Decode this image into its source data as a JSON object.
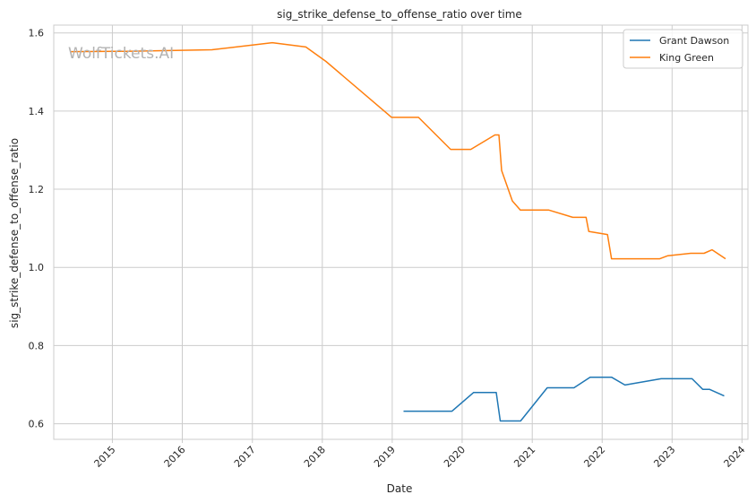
{
  "chart_data": {
    "type": "line",
    "title": "sig_strike_defense_to_offense_ratio over time",
    "xlabel": "Date",
    "ylabel": "sig_strike_defense_to_offense_ratio",
    "watermark": "WolfTickets.AI",
    "x_axis_type": "date",
    "xlim": [
      "2014-03-01",
      "2024-02-01"
    ],
    "ylim": [
      0.56,
      1.62
    ],
    "xticks": [
      "2015",
      "2016",
      "2017",
      "2018",
      "2019",
      "2020",
      "2021",
      "2022",
      "2023",
      "2024"
    ],
    "yticks": [
      "0.6",
      "0.8",
      "1.0",
      "1.2",
      "1.4",
      "1.6"
    ],
    "grid": true,
    "legend_position": "top-right",
    "series": [
      {
        "name": "Grant Dawson",
        "color": "#1f77b4",
        "points": [
          [
            "2019-03-01",
            0.632
          ],
          [
            "2019-11-09",
            0.632
          ],
          [
            "2020-03-01",
            0.68
          ],
          [
            "2020-06-27",
            0.68
          ],
          [
            "2020-07-18",
            0.607
          ],
          [
            "2020-11-01",
            0.607
          ],
          [
            "2021-03-20",
            0.692
          ],
          [
            "2021-08-07",
            0.692
          ],
          [
            "2021-10-30",
            0.719
          ],
          [
            "2022-02-19",
            0.719
          ],
          [
            "2022-04-30",
            0.699
          ],
          [
            "2022-11-05",
            0.715
          ],
          [
            "2023-04-15",
            0.715
          ],
          [
            "2023-06-10",
            0.688
          ],
          [
            "2023-07-15",
            0.688
          ],
          [
            "2023-09-30",
            0.671
          ]
        ]
      },
      {
        "name": "King Green",
        "color": "#ff7f0e",
        "points": [
          [
            "2014-05-24",
            1.552
          ],
          [
            "2015-03-15",
            1.553
          ],
          [
            "2016-06-04",
            1.557
          ],
          [
            "2017-04-15",
            1.575
          ],
          [
            "2017-10-07",
            1.564
          ],
          [
            "2018-01-20",
            1.527
          ],
          [
            "2018-12-29",
            1.384
          ],
          [
            "2019-05-18",
            1.384
          ],
          [
            "2019-11-02",
            1.302
          ],
          [
            "2020-02-15",
            1.302
          ],
          [
            "2020-06-20",
            1.339
          ],
          [
            "2020-07-11",
            1.339
          ],
          [
            "2020-07-25",
            1.248
          ],
          [
            "2020-09-19",
            1.17
          ],
          [
            "2020-10-31",
            1.147
          ],
          [
            "2021-03-27",
            1.147
          ],
          [
            "2021-08-01",
            1.128
          ],
          [
            "2021-10-09",
            1.128
          ],
          [
            "2021-10-23",
            1.092
          ],
          [
            "2022-01-29",
            1.084
          ],
          [
            "2022-02-19",
            1.022
          ],
          [
            "2022-10-29",
            1.022
          ],
          [
            "2022-12-10",
            1.03
          ],
          [
            "2023-04-08",
            1.036
          ],
          [
            "2023-06-17",
            1.036
          ],
          [
            "2023-07-29",
            1.045
          ],
          [
            "2023-10-07",
            1.022
          ]
        ]
      }
    ],
    "colors": {
      "grid": "#cccccc",
      "spine": "#cccccc",
      "text": "#262626"
    }
  }
}
